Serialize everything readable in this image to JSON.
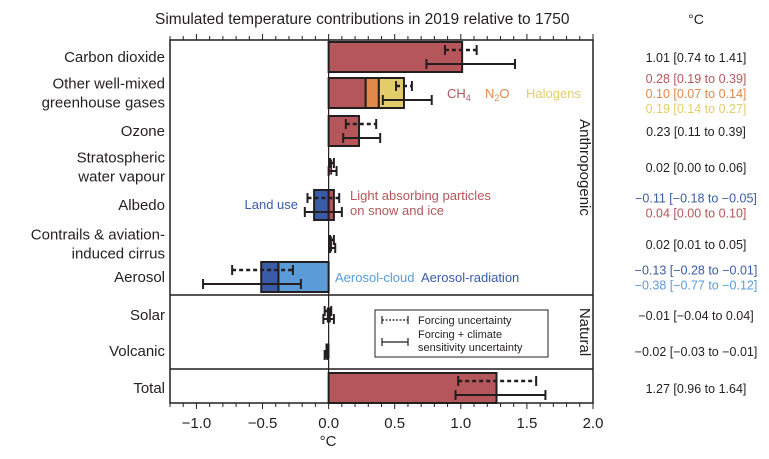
{
  "chart_data": {
    "type": "bar",
    "orientation": "horizontal",
    "title": "Simulated temperature contributions in 2019 relative to 1750",
    "xlabel": "°C",
    "ylabel": "",
    "xlim": [
      -1.2,
      2.0
    ],
    "x_ticks": [
      -1.0,
      -0.5,
      0.0,
      0.5,
      1.0,
      1.5,
      2.0
    ],
    "x_tick_labels": [
      "−1.0",
      "−0.5",
      "0.0",
      "0.5",
      "1.0",
      "1.5",
      "2.0"
    ],
    "grid": false,
    "values_column_header": "°C",
    "groups": [
      {
        "label": "Anthropogenic",
        "rows": [
          0,
          1,
          2,
          3,
          4,
          5,
          6
        ]
      },
      {
        "label": "Natural",
        "rows": [
          7,
          8
        ]
      }
    ],
    "colors": {
      "co2": "#b5565a",
      "ch4": "#b5565a",
      "n2o": "#e0894a",
      "halogens": "#e3cd6a",
      "ozone": "#b5565a",
      "land_use": "#3a5ba8",
      "lap": "#b5565a",
      "aerosol_cloud": "#5b9bd8",
      "aerosol_radiation": "#3a5ba8",
      "total": "#b5565a",
      "neutral": "#231f20"
    },
    "rows": [
      {
        "label": [
          "Carbon dioxide"
        ],
        "segments": [
          {
            "name": "Carbon dioxide",
            "value": 1.01,
            "color_key": "co2"
          }
        ],
        "forcing_uncertainty": [
          0.88,
          1.12
        ],
        "total_uncertainty": [
          0.74,
          1.41
        ],
        "annotations": [
          {
            "text": "1.01 [0.74 to 1.41]",
            "color_key": "neutral"
          }
        ]
      },
      {
        "label": [
          "Other well-mixed",
          "greenhouse gases"
        ],
        "segments": [
          {
            "name": "CH4",
            "value": 0.28,
            "color_key": "ch4"
          },
          {
            "name": "N2O",
            "value": 0.1,
            "color_key": "n2o"
          },
          {
            "name": "Halogens",
            "value": 0.19,
            "color_key": "halogens"
          }
        ],
        "forcing_uncertainty": [
          0.51,
          0.63
        ],
        "total_uncertainty": [
          0.41,
          0.78
        ],
        "segment_labels": [
          {
            "text": "CH",
            "sub": "4",
            "color_key": "ch4"
          },
          {
            "text": "N",
            "sub": "2",
            "tail": "O",
            "color_key": "n2o"
          },
          {
            "text": "Halogens",
            "color_key": "halogens"
          }
        ],
        "annotations": [
          {
            "text": "0.28 [0.19 to 0.39]",
            "color_key": "ch4"
          },
          {
            "text": "0.10 [0.07 to 0.14]",
            "color_key": "n2o"
          },
          {
            "text": "0.19 [0.14 to 0.27]",
            "color_key": "halogens"
          }
        ]
      },
      {
        "label": [
          "Ozone"
        ],
        "segments": [
          {
            "name": "Ozone",
            "value": 0.23,
            "color_key": "ozone"
          }
        ],
        "forcing_uncertainty": [
          0.13,
          0.36
        ],
        "total_uncertainty": [
          0.11,
          0.39
        ],
        "annotations": [
          {
            "text": "0.23 [0.11 to 0.39]",
            "color_key": "neutral"
          }
        ]
      },
      {
        "label": [
          "Stratospheric",
          "water vapour"
        ],
        "segments": [
          {
            "name": "Stratospheric water vapour",
            "value": 0.02,
            "color_key": "co2"
          }
        ],
        "forcing_uncertainty": [
          0.01,
          0.04
        ],
        "total_uncertainty": [
          0.0,
          0.06
        ],
        "annotations": [
          {
            "text": "0.02 [0.00 to 0.06]",
            "color_key": "neutral"
          }
        ]
      },
      {
        "label": [
          "Albedo"
        ],
        "segments": [
          {
            "name": "Land use",
            "value": -0.11,
            "color_key": "land_use"
          },
          {
            "name": "Light absorbing particles on snow and ice",
            "value": 0.04,
            "color_key": "lap"
          }
        ],
        "forcing_uncertainty": [
          -0.16,
          0.08
        ],
        "total_uncertainty": [
          -0.18,
          0.1
        ],
        "segment_labels": [
          {
            "text": "Land use",
            "color_key": "land_use"
          },
          {
            "text": "Light absorbing particles",
            "text2": "on snow and ice",
            "color_key": "lap"
          }
        ],
        "annotations": [
          {
            "text": "−0.11 [−0.18 to −0.05]",
            "color_key": "land_use"
          },
          {
            "text": "0.04 [0.00 to 0.10]",
            "color_key": "lap"
          }
        ]
      },
      {
        "label": [
          "Contrails & aviation-",
          "induced cirrus"
        ],
        "segments": [
          {
            "name": "Contrails",
            "value": 0.02,
            "color_key": "co2"
          }
        ],
        "forcing_uncertainty": [
          0.01,
          0.04
        ],
        "total_uncertainty": [
          0.01,
          0.05
        ],
        "annotations": [
          {
            "text": "0.02 [0.01 to 0.05]",
            "color_key": "neutral"
          }
        ]
      },
      {
        "label": [
          "Aerosol"
        ],
        "segments": [
          {
            "name": "Aerosol-cloud",
            "value": -0.38,
            "color_key": "aerosol_cloud"
          },
          {
            "name": "Aerosol-radiation",
            "value": -0.13,
            "color_key": "aerosol_radiation"
          }
        ],
        "forcing_uncertainty": [
          -0.73,
          -0.27
        ],
        "total_uncertainty": [
          -0.95,
          -0.21
        ],
        "segment_labels": [
          {
            "text": "Aerosol-cloud",
            "color_key": "aerosol_cloud"
          },
          {
            "text": "Aerosol-radiation",
            "color_key": "aerosol_radiation"
          }
        ],
        "annotations": [
          {
            "text": "−0.13 [−0.28 to −0.01]",
            "color_key": "aerosol_radiation"
          },
          {
            "text": "−0.38 [−0.77 to −0.12]",
            "color_key": "aerosol_cloud"
          }
        ]
      },
      {
        "label": [
          "Solar"
        ],
        "segments": [
          {
            "name": "Solar",
            "value": -0.01,
            "color_key": "neutral"
          }
        ],
        "forcing_uncertainty": [
          -0.03,
          0.02
        ],
        "total_uncertainty": [
          -0.04,
          0.04
        ],
        "annotations": [
          {
            "text": "−0.01 [−0.04 to 0.04]",
            "color_key": "neutral"
          }
        ]
      },
      {
        "label": [
          "Volcanic"
        ],
        "segments": [
          {
            "name": "Volcanic",
            "value": -0.02,
            "color_key": "neutral"
          }
        ],
        "forcing_uncertainty": null,
        "total_uncertainty": [
          -0.03,
          -0.01
        ],
        "annotations": [
          {
            "text": "−0.02 [−0.03 to −0.01]",
            "color_key": "neutral"
          }
        ]
      },
      {
        "label": [
          "Total"
        ],
        "segments": [
          {
            "name": "Total",
            "value": 1.27,
            "color_key": "total"
          }
        ],
        "forcing_uncertainty": [
          0.98,
          1.57
        ],
        "total_uncertainty": [
          0.96,
          1.64
        ],
        "annotations": [
          {
            "text": "1.27 [0.96 to 1.64]",
            "color_key": "neutral"
          }
        ]
      }
    ],
    "legend": {
      "placement": "lower-right-inside",
      "entries": [
        {
          "style": "dotted-errorbar",
          "label": [
            "Forcing uncertainty"
          ]
        },
        {
          "style": "solid-errorbar",
          "label": [
            "Forcing + climate",
            "sensitivity uncertainty"
          ]
        }
      ]
    }
  }
}
